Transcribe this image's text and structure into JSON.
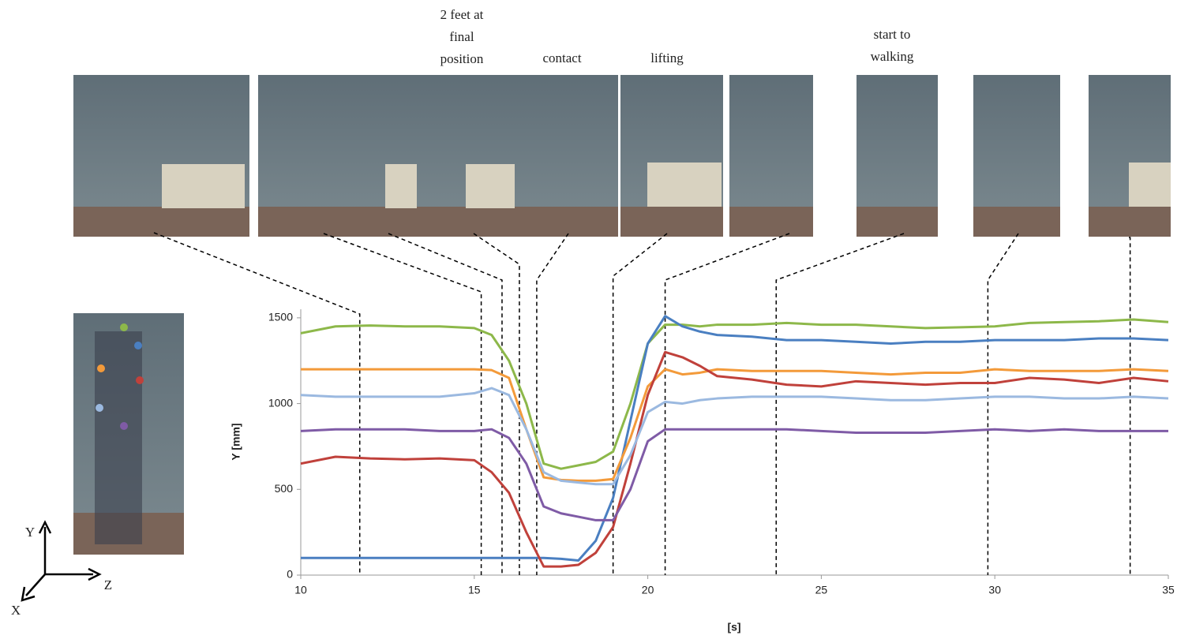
{
  "chart_data": {
    "type": "line",
    "annotations": [
      [
        "2 feet at",
        "final",
        "position"
      ],
      [
        "contact"
      ],
      [
        "lifting"
      ],
      [
        "start to",
        "walking"
      ]
    ],
    "axis_symbols": {
      "y": "Y",
      "z": "Z",
      "x": "X"
    },
    "y_label": "Y  [mm]",
    "x_label": "[s]",
    "xlim": [
      10,
      35
    ],
    "xticks": [
      10,
      15,
      20,
      25,
      30,
      35
    ],
    "ylim": [
      0,
      1550
    ],
    "yticks": [
      0,
      500,
      1000,
      1500
    ],
    "event_times": [
      11.7,
      15.2,
      15.8,
      16.3,
      16.8,
      19.0,
      20.5,
      23.7,
      29.8,
      33.9
    ],
    "x": [
      10,
      11,
      12,
      13,
      14,
      15,
      15.5,
      16,
      16.5,
      17,
      17.5,
      18,
      18.5,
      19,
      19.5,
      20,
      20.5,
      21,
      21.5,
      22,
      23,
      24,
      25,
      26,
      27,
      28,
      29,
      30,
      31,
      32,
      33,
      34,
      35
    ],
    "series": [
      {
        "color": "#8db84a",
        "values": [
          1410,
          1450,
          1455,
          1450,
          1450,
          1440,
          1400,
          1250,
          1000,
          650,
          620,
          640,
          660,
          720,
          1000,
          1350,
          1460,
          1460,
          1450,
          1460,
          1460,
          1470,
          1460,
          1460,
          1450,
          1440,
          1445,
          1450,
          1470,
          1475,
          1480,
          1490,
          1475
        ]
      },
      {
        "color": "#4a7fc1",
        "values": [
          100,
          100,
          100,
          100,
          100,
          100,
          100,
          100,
          100,
          100,
          95,
          85,
          200,
          450,
          900,
          1350,
          1510,
          1450,
          1420,
          1400,
          1390,
          1370,
          1370,
          1360,
          1350,
          1360,
          1360,
          1370,
          1370,
          1370,
          1380,
          1380,
          1370
        ]
      },
      {
        "color": "#f39a3a",
        "values": [
          1200,
          1200,
          1200,
          1200,
          1200,
          1200,
          1195,
          1150,
          850,
          570,
          555,
          550,
          550,
          560,
          800,
          1100,
          1200,
          1170,
          1180,
          1200,
          1190,
          1190,
          1190,
          1180,
          1170,
          1180,
          1180,
          1200,
          1190,
          1190,
          1190,
          1200,
          1190
        ]
      },
      {
        "color": "#c0413b",
        "values": [
          650,
          690,
          680,
          675,
          680,
          670,
          600,
          480,
          250,
          50,
          50,
          60,
          130,
          280,
          650,
          1050,
          1300,
          1270,
          1220,
          1160,
          1140,
          1110,
          1100,
          1130,
          1120,
          1110,
          1120,
          1120,
          1150,
          1140,
          1120,
          1150,
          1130
        ]
      },
      {
        "color": "#9bb9e0",
        "values": [
          1050,
          1040,
          1040,
          1040,
          1040,
          1060,
          1090,
          1050,
          850,
          600,
          550,
          540,
          530,
          530,
          700,
          950,
          1010,
          1000,
          1020,
          1030,
          1040,
          1040,
          1040,
          1030,
          1020,
          1020,
          1030,
          1040,
          1040,
          1030,
          1030,
          1040,
          1030
        ]
      },
      {
        "color": "#7f5ba6",
        "values": [
          840,
          850,
          850,
          850,
          840,
          840,
          850,
          800,
          650,
          400,
          360,
          340,
          320,
          320,
          500,
          780,
          850,
          850,
          850,
          850,
          850,
          850,
          840,
          830,
          830,
          830,
          840,
          850,
          840,
          850,
          840,
          840,
          840
        ]
      }
    ]
  }
}
